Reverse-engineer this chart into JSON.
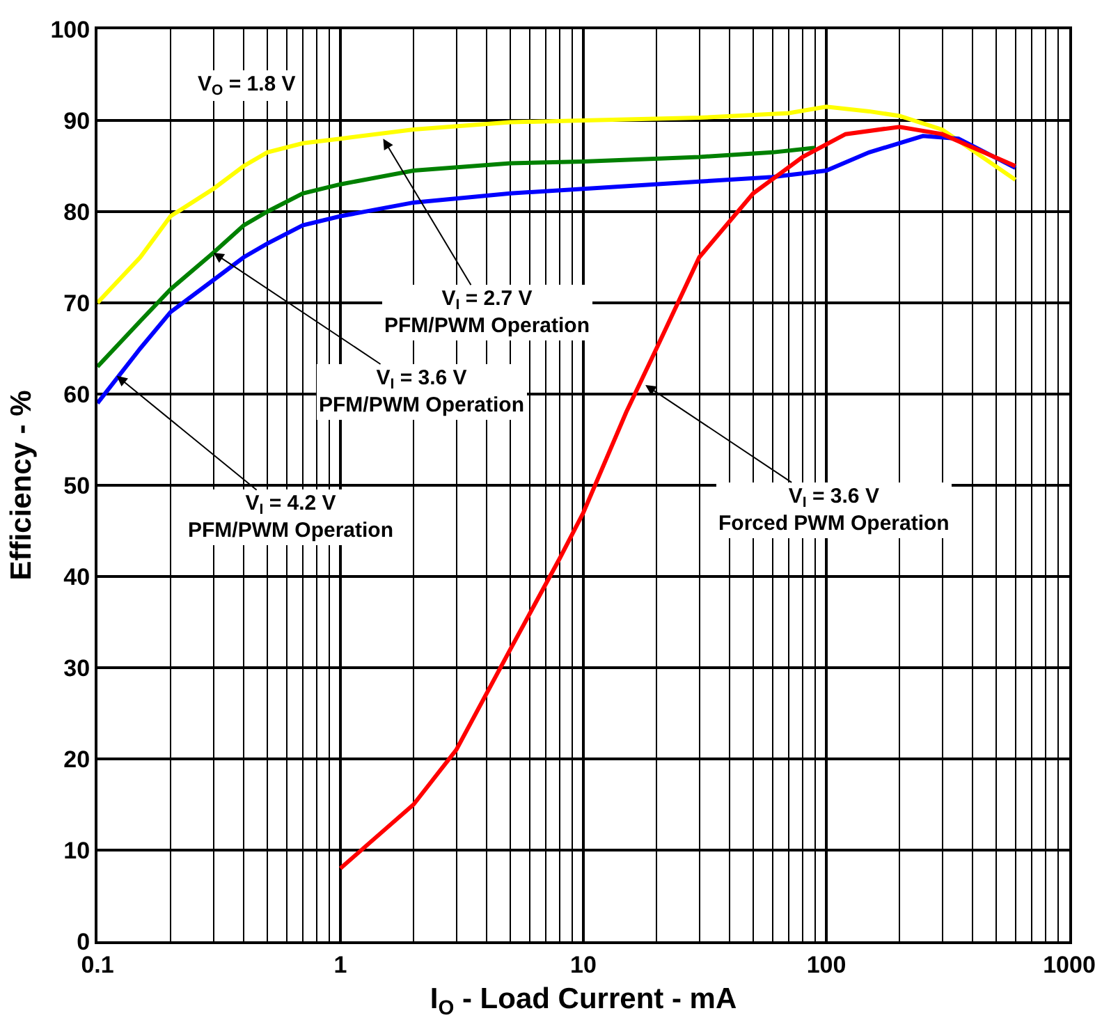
{
  "chart_data": {
    "type": "line",
    "xlabel": "I$_{O}$ - Load Current - mA",
    "ylabel": "Efficiency - %",
    "log": "x",
    "xlim": [
      0.1,
      1000
    ],
    "xticks": [
      0.1,
      1,
      10,
      100,
      1000
    ],
    "ylim": [
      0,
      100
    ],
    "yticks": [
      0,
      10,
      20,
      30,
      40,
      50,
      60,
      70,
      80,
      90,
      100
    ],
    "grid": true,
    "marker": "none",
    "line_style": "solid",
    "series": [
      {
        "color": "#ffff00",
        "x": [
          0.1,
          0.15,
          0.2,
          0.3,
          0.4,
          0.5,
          0.7,
          1,
          2,
          5,
          10,
          30,
          70,
          100,
          150,
          200,
          300,
          600
        ],
        "values": [
          70,
          75,
          79.5,
          82.5,
          85,
          86.5,
          87.5,
          88,
          89,
          89.8,
          90,
          90.3,
          90.8,
          91.5,
          91,
          90.5,
          89,
          83.5
        ]
      },
      {
        "color": "#008000",
        "x": [
          0.1,
          0.15,
          0.2,
          0.3,
          0.4,
          0.5,
          0.7,
          1,
          2,
          5,
          10,
          30,
          60,
          90
        ],
        "values": [
          63,
          68,
          71.5,
          75.5,
          78.5,
          80,
          82,
          83,
          84.5,
          85.3,
          85.5,
          86,
          86.5,
          87
        ]
      },
      {
        "color": "#0000ff",
        "x": [
          0.1,
          0.15,
          0.2,
          0.3,
          0.4,
          0.5,
          0.7,
          1,
          2,
          5,
          10,
          30,
          60,
          100,
          150,
          250,
          350,
          600
        ],
        "values": [
          59,
          65,
          69,
          72.5,
          75,
          76.5,
          78.5,
          79.5,
          81,
          82,
          82.5,
          83.3,
          83.8,
          84.5,
          86.5,
          88.3,
          88,
          84.8
        ]
      },
      {
        "color": "#ff0000",
        "x": [
          1,
          2,
          3,
          5,
          8,
          10,
          15,
          20,
          30,
          50,
          80,
          120,
          200,
          300,
          600
        ],
        "values": [
          8,
          15,
          21,
          32,
          42,
          47,
          58,
          65,
          75,
          82,
          86,
          88.5,
          89.3,
          88.5,
          85
        ]
      }
    ],
    "annotations": [
      "V$_{O}$ = 1.8 V",
      {
        "text": "V$_{I}$ = 2.7 V\nPFM/PWM Operation",
        "x": 1.5,
        "y": 88
      },
      {
        "text": "V$_{I}$ = 3.6 V\nPFM/PWM Operation",
        "x": 0.3,
        "y": 75.5
      },
      {
        "text": "V$_{I}$ = 4.2 V\nPFM/PWM Operation",
        "x": 0.12,
        "y": 62
      },
      {
        "text": "V$_{I}$ = 3.6 V\nForced PWM Operation",
        "x": 18,
        "y": 61
      }
    ]
  }
}
